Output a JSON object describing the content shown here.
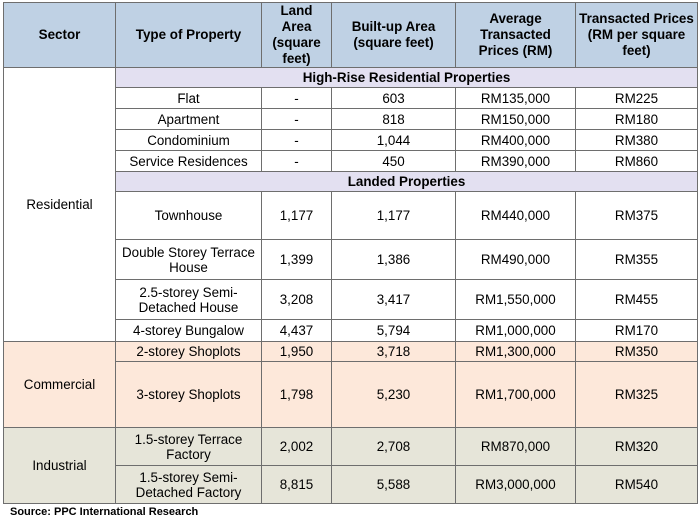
{
  "headers": {
    "sector": "Sector",
    "type": "Type of Property",
    "land": "Land Area (square feet)",
    "builtup": "Built-up Area (square feet)",
    "avg": "Average Transacted Prices (RM)",
    "psf": "Transacted Prices (RM per square feet)"
  },
  "sectors": {
    "residential": "Residential",
    "commercial": "Commercial",
    "industrial": "Industrial"
  },
  "subheaders": {
    "highrise": "High-Rise Residential Properties",
    "landed": "Landed Properties"
  },
  "rows": {
    "highrise": [
      {
        "type": "Flat",
        "land": "-",
        "builtup": "603",
        "avg": "RM135,000",
        "psf": "RM225"
      },
      {
        "type": "Apartment",
        "land": "-",
        "builtup": "818",
        "avg": "RM150,000",
        "psf": "RM180"
      },
      {
        "type": "Condominium",
        "land": "-",
        "builtup": "1,044",
        "avg": "RM400,000",
        "psf": "RM380"
      },
      {
        "type": "Service Residences",
        "land": "-",
        "builtup": "450",
        "avg": "RM390,000",
        "psf": "RM860"
      }
    ],
    "landed": [
      {
        "type": "Townhouse",
        "land": "1,177",
        "builtup": "1,177",
        "avg": "RM440,000",
        "psf": "RM375"
      },
      {
        "type": "Double Storey Terrace House",
        "land": "1,399",
        "builtup": "1,386",
        "avg": "RM490,000",
        "psf": "RM355"
      },
      {
        "type": "2.5-storey Semi-Detached House",
        "land": "3,208",
        "builtup": "3,417",
        "avg": "RM1,550,000",
        "psf": "RM455"
      },
      {
        "type": "4-storey Bungalow",
        "land": "4,437",
        "builtup": "5,794",
        "avg": "RM1,000,000",
        "psf": "RM170"
      }
    ],
    "commercial": [
      {
        "type": "2-storey Shoplots",
        "land": "1,950",
        "builtup": "3,718",
        "avg": "RM1,300,000",
        "psf": "RM350"
      },
      {
        "type": "3-storey Shoplots",
        "land": "1,798",
        "builtup": "5,230",
        "avg": "RM1,700,000",
        "psf": "RM325"
      }
    ],
    "industrial": [
      {
        "type": "1.5-storey Terrace Factory",
        "land": "2,002",
        "builtup": "2,708",
        "avg": "RM870,000",
        "psf": "RM320"
      },
      {
        "type": "1.5-storey Semi-Detached Factory",
        "land": "8,815",
        "builtup": "5,588",
        "avg": "RM3,000,000",
        "psf": "RM540"
      }
    ]
  },
  "source": "Source: PPC International Research",
  "colors": {
    "header": "#bfd1e4",
    "subheader": "#e3e0f1",
    "commercial": "#fde8da",
    "industrial": "#e6e5d9"
  }
}
